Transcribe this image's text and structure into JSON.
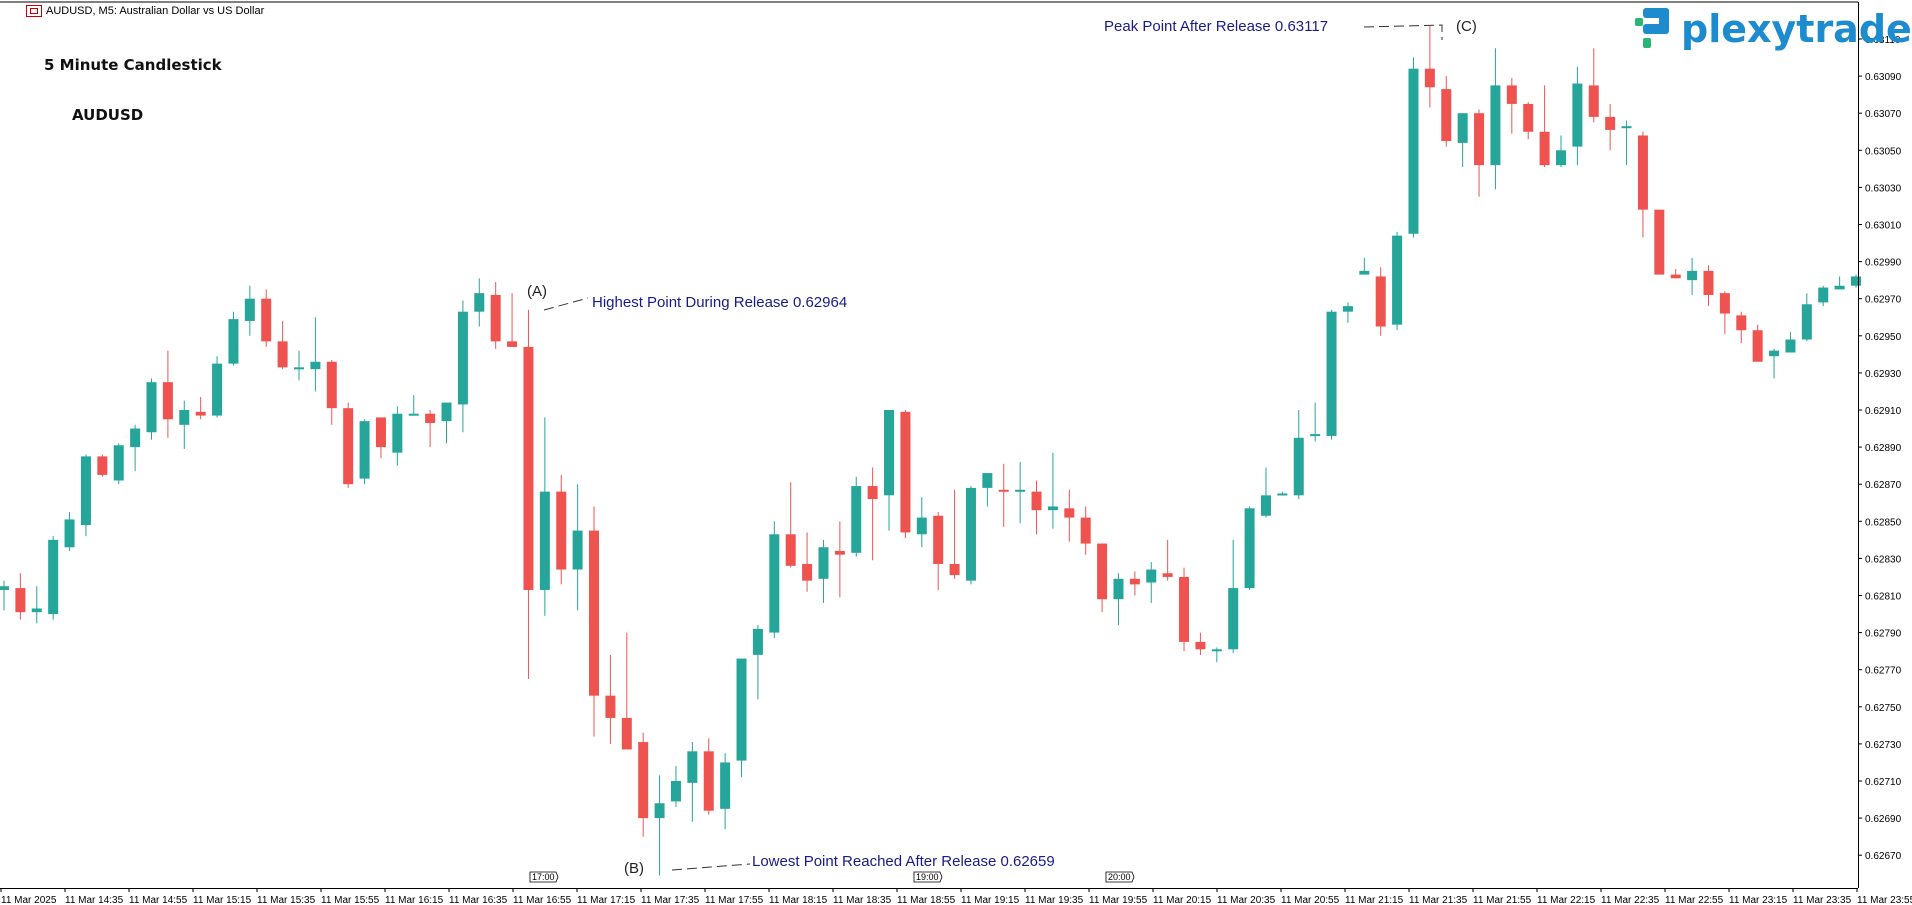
{
  "window_title": "AUDUSD, M5:  Australian Dollar vs US Dollar",
  "logo": {
    "text": "plexytrade",
    "color": "#1d8ccf",
    "accent": "#2bb673"
  },
  "labels": {
    "chart_type": "5 Minute Candlestick",
    "symbol": "AUDUSD"
  },
  "annotations": {
    "a": {
      "marker": "(A)",
      "text": "Highest Point During Release 0.62964"
    },
    "b": {
      "marker": "(B)",
      "text": "Lowest Point Reached After Release 0.62659"
    },
    "c": {
      "marker": "(C)",
      "text": "Peak Point After Release 0.63117"
    }
  },
  "colors": {
    "bull": "#26a69a",
    "bear": "#ef5350",
    "axis": "#000000",
    "annotation": "#1a1a8c"
  },
  "chart_data": {
    "type": "candlestick",
    "timeframe": "M5",
    "symbol": "AUDUSD",
    "y_ticks": [
      "0.63110",
      "0.63090",
      "0.63070",
      "0.63050",
      "0.63030",
      "0.63010",
      "0.62990",
      "0.62970",
      "0.62950",
      "0.62930",
      "0.62910",
      "0.62890",
      "0.62870",
      "0.62850",
      "0.62830",
      "0.62810",
      "0.62790",
      "0.62770",
      "0.62750",
      "0.62730",
      "0.62710",
      "0.62690",
      "0.62670"
    ],
    "ylim": [
      0.6265,
      0.6312
    ],
    "x_ticks": [
      "11 Mar 2025",
      "11 Mar 14:35",
      "11 Mar 14:55",
      "11 Mar 15:15",
      "11 Mar 15:35",
      "11 Mar 15:55",
      "11 Mar 16:15",
      "11 Mar 16:35",
      "11 Mar 16:55",
      "11 Mar 17:15",
      "11 Mar 17:35",
      "11 Mar 17:55",
      "11 Mar 18:15",
      "11 Mar 18:35",
      "11 Mar 18:55",
      "11 Mar 19:15",
      "11 Mar 19:35",
      "11 Mar 19:55",
      "11 Mar 20:15",
      "11 Mar 20:35",
      "11 Mar 20:55",
      "11 Mar 21:15",
      "11 Mar 21:35",
      "11 Mar 21:55",
      "11 Mar 22:15",
      "11 Mar 22:35",
      "11 Mar 22:55",
      "11 Mar 23:15",
      "11 Mar 23:35",
      "11 Mar 23:55"
    ],
    "time_markers": [
      "17:00",
      "19:00",
      "20:00"
    ],
    "candles": [
      [
        0.62813,
        0.62818,
        0.62802,
        0.62815
      ],
      [
        0.62814,
        0.62822,
        0.62797,
        0.62801
      ],
      [
        0.62801,
        0.62815,
        0.62795,
        0.62803
      ],
      [
        0.628,
        0.62842,
        0.62797,
        0.6284
      ],
      [
        0.62836,
        0.62855,
        0.62834,
        0.62851
      ],
      [
        0.62848,
        0.62886,
        0.62842,
        0.62885
      ],
      [
        0.62885,
        0.62886,
        0.62874,
        0.62875
      ],
      [
        0.62872,
        0.62892,
        0.6287,
        0.62891
      ],
      [
        0.6289,
        0.62902,
        0.62877,
        0.629
      ],
      [
        0.62898,
        0.62927,
        0.62894,
        0.62925
      ],
      [
        0.62925,
        0.62942,
        0.62895,
        0.62905
      ],
      [
        0.62902,
        0.62915,
        0.62889,
        0.6291
      ],
      [
        0.62909,
        0.62917,
        0.62905,
        0.62907
      ],
      [
        0.62907,
        0.62939,
        0.62906,
        0.62935
      ],
      [
        0.62935,
        0.62963,
        0.62934,
        0.62959
      ],
      [
        0.62958,
        0.62977,
        0.6295,
        0.6297
      ],
      [
        0.6297,
        0.62975,
        0.62944,
        0.62947
      ],
      [
        0.62947,
        0.62958,
        0.62932,
        0.62933
      ],
      [
        0.62933,
        0.62942,
        0.62926,
        0.62933
      ],
      [
        0.62932,
        0.6296,
        0.6292,
        0.62936
      ],
      [
        0.62936,
        0.62937,
        0.62902,
        0.62911
      ],
      [
        0.62911,
        0.62914,
        0.62868,
        0.6287
      ],
      [
        0.62873,
        0.62905,
        0.6287,
        0.62904
      ],
      [
        0.62906,
        0.62906,
        0.62884,
        0.6289
      ],
      [
        0.62887,
        0.62912,
        0.6288,
        0.62908
      ],
      [
        0.62908,
        0.62918,
        0.62907,
        0.62908
      ],
      [
        0.62908,
        0.6291,
        0.6289,
        0.62903
      ],
      [
        0.62904,
        0.62914,
        0.62892,
        0.62914
      ],
      [
        0.62913,
        0.62969,
        0.62898,
        0.62963
      ],
      [
        0.62963,
        0.62981,
        0.62955,
        0.62973
      ],
      [
        0.62972,
        0.62979,
        0.62943,
        0.62947
      ],
      [
        0.62947,
        0.62973,
        0.62945,
        0.62944
      ],
      [
        0.62944,
        0.62964,
        0.62765,
        0.62813
      ],
      [
        0.62813,
        0.62906,
        0.62799,
        0.62866
      ],
      [
        0.62866,
        0.62875,
        0.62816,
        0.62824
      ],
      [
        0.62824,
        0.6287,
        0.62802,
        0.62845
      ],
      [
        0.62845,
        0.62858,
        0.62734,
        0.62756
      ],
      [
        0.62756,
        0.62778,
        0.6273,
        0.62744
      ],
      [
        0.62744,
        0.6279,
        0.62728,
        0.62727
      ],
      [
        0.62731,
        0.62736,
        0.6268,
        0.6269
      ],
      [
        0.6269,
        0.62713,
        0.62659,
        0.62698
      ],
      [
        0.62699,
        0.62718,
        0.62696,
        0.6271
      ],
      [
        0.62709,
        0.62731,
        0.62688,
        0.62726
      ],
      [
        0.62726,
        0.62733,
        0.62692,
        0.62694
      ],
      [
        0.62695,
        0.62725,
        0.62684,
        0.6272
      ],
      [
        0.62721,
        0.62775,
        0.62712,
        0.62776
      ],
      [
        0.62778,
        0.62794,
        0.62754,
        0.62792
      ],
      [
        0.6279,
        0.6285,
        0.62787,
        0.62843
      ],
      [
        0.62843,
        0.62871,
        0.62825,
        0.62826
      ],
      [
        0.62827,
        0.62844,
        0.62812,
        0.62818
      ],
      [
        0.62819,
        0.6284,
        0.62806,
        0.62836
      ],
      [
        0.62834,
        0.6285,
        0.62809,
        0.62832
      ],
      [
        0.62833,
        0.62874,
        0.62831,
        0.62869
      ],
      [
        0.62869,
        0.62879,
        0.62829,
        0.62862
      ],
      [
        0.62864,
        0.6291,
        0.62845,
        0.6291
      ],
      [
        0.62909,
        0.6291,
        0.62841,
        0.62844
      ],
      [
        0.62843,
        0.62863,
        0.62836,
        0.62852
      ],
      [
        0.62853,
        0.62855,
        0.62813,
        0.62827
      ],
      [
        0.62827,
        0.62867,
        0.62819,
        0.62821
      ],
      [
        0.62818,
        0.62869,
        0.62816,
        0.62868
      ],
      [
        0.62868,
        0.62874,
        0.62858,
        0.62876
      ],
      [
        0.62867,
        0.62881,
        0.62847,
        0.62866
      ],
      [
        0.62866,
        0.62882,
        0.62849,
        0.62867
      ],
      [
        0.62866,
        0.62872,
        0.62843,
        0.62856
      ],
      [
        0.62856,
        0.62887,
        0.62846,
        0.62858
      ],
      [
        0.62857,
        0.62867,
        0.62839,
        0.62852
      ],
      [
        0.62852,
        0.62858,
        0.62832,
        0.62838
      ],
      [
        0.62838,
        0.62838,
        0.62801,
        0.62808
      ],
      [
        0.62808,
        0.62822,
        0.62794,
        0.62819
      ],
      [
        0.62819,
        0.62823,
        0.6281,
        0.62816
      ],
      [
        0.62817,
        0.62828,
        0.62806,
        0.62824
      ],
      [
        0.62822,
        0.6284,
        0.62818,
        0.6282
      ],
      [
        0.6282,
        0.62825,
        0.6278,
        0.62785
      ],
      [
        0.62785,
        0.6279,
        0.62778,
        0.62781
      ],
      [
        0.6278,
        0.62782,
        0.62774,
        0.62781
      ],
      [
        0.62781,
        0.6284,
        0.62779,
        0.62814
      ],
      [
        0.62814,
        0.62858,
        0.62813,
        0.62857
      ],
      [
        0.62853,
        0.62879,
        0.62852,
        0.62864
      ],
      [
        0.62864,
        0.62866,
        0.62864,
        0.62865
      ],
      [
        0.62864,
        0.6291,
        0.62862,
        0.62895
      ],
      [
        0.62896,
        0.62914,
        0.62893,
        0.62897
      ],
      [
        0.62896,
        0.62964,
        0.62894,
        0.62963
      ],
      [
        0.62963,
        0.62968,
        0.62957,
        0.62966
      ],
      [
        0.62983,
        0.62992,
        0.62983,
        0.62985
      ],
      [
        0.62982,
        0.62987,
        0.6295,
        0.62955
      ],
      [
        0.62956,
        0.63006,
        0.62953,
        0.63004
      ],
      [
        0.63005,
        0.631,
        0.63003,
        0.63094
      ],
      [
        0.63094,
        0.63117,
        0.63073,
        0.63084
      ],
      [
        0.63083,
        0.6309,
        0.63052,
        0.63055
      ],
      [
        0.63054,
        0.6307,
        0.63041,
        0.6307
      ],
      [
        0.6307,
        0.63072,
        0.63025,
        0.63042
      ],
      [
        0.63042,
        0.63105,
        0.63029,
        0.63085
      ],
      [
        0.63085,
        0.63089,
        0.63059,
        0.63075
      ],
      [
        0.63075,
        0.63076,
        0.63056,
        0.6306
      ],
      [
        0.6306,
        0.63085,
        0.63041,
        0.63042
      ],
      [
        0.63042,
        0.63058,
        0.63041,
        0.6305
      ],
      [
        0.63052,
        0.63095,
        0.63042,
        0.63086
      ],
      [
        0.63085,
        0.63105,
        0.63065,
        0.63068
      ],
      [
        0.63068,
        0.63075,
        0.6305,
        0.63061
      ],
      [
        0.63062,
        0.63066,
        0.63042,
        0.63063
      ],
      [
        0.63058,
        0.6306,
        0.63003,
        0.63018
      ],
      [
        0.63018,
        0.63017,
        0.62983,
        0.62983
      ],
      [
        0.62983,
        0.62986,
        0.62981,
        0.62981
      ],
      [
        0.6298,
        0.62992,
        0.62972,
        0.62985
      ],
      [
        0.62985,
        0.62988,
        0.62966,
        0.62972
      ],
      [
        0.62973,
        0.62974,
        0.62951,
        0.62962
      ],
      [
        0.62961,
        0.62963,
        0.62946,
        0.62953
      ],
      [
        0.62953,
        0.62956,
        0.62938,
        0.62936
      ],
      [
        0.62939,
        0.62943,
        0.62927,
        0.62942
      ],
      [
        0.62941,
        0.62952,
        0.62944,
        0.62948
      ],
      [
        0.62948,
        0.62973,
        0.62947,
        0.62967
      ],
      [
        0.62968,
        0.62977,
        0.62966,
        0.62976
      ],
      [
        0.62975,
        0.62982,
        0.62976,
        0.62977
      ],
      [
        0.62977,
        0.62983,
        0.62976,
        0.62982
      ]
    ]
  }
}
